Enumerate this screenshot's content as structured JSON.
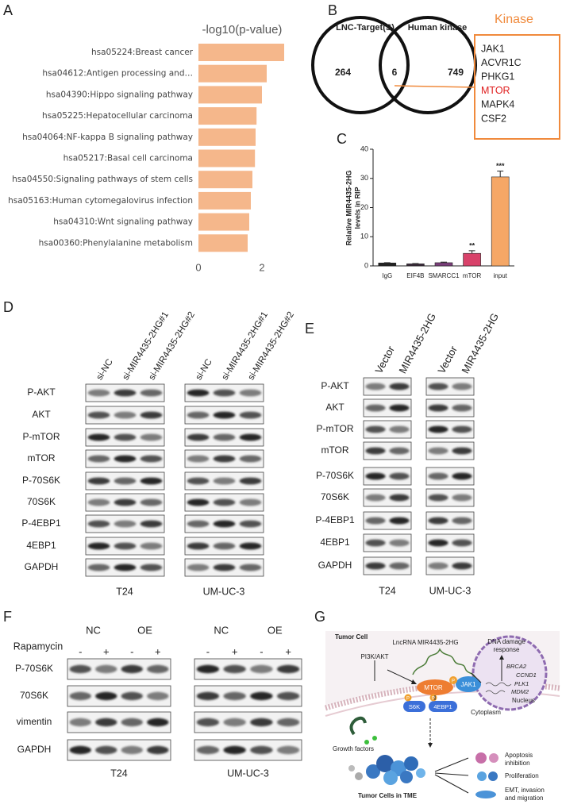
{
  "panel_labels": [
    "A",
    "B",
    "C",
    "D",
    "E",
    "F",
    "G"
  ],
  "chart_data": [
    {
      "type": "bar",
      "orientation": "horizontal",
      "title": "-log10(p-value)",
      "categories": [
        "hsa05224:Breast cancer",
        "hsa04612:Antigen processing and…",
        "hsa04390:Hippo signaling pathway",
        "hsa05225:Hepatocellular carcinoma",
        "hsa04064:NF-kappa B signaling pathway",
        "hsa05217:Basal cell carcinoma",
        "hsa04550:Signaling pathways of stem cells",
        "hsa05163:Human cytomegalovirus infection",
        "hsa04310:Wnt signaling pathway",
        "hsa00360:Phenylalanine metabolism"
      ],
      "values": [
        2.7,
        2.15,
        2.0,
        1.83,
        1.8,
        1.78,
        1.7,
        1.65,
        1.6,
        1.55
      ],
      "color": "#f5b78b",
      "xlim": [
        0,
        2.8
      ],
      "xticks": [
        0,
        2
      ]
    },
    {
      "type": "bar",
      "ylabel": [
        "Relative MIR4435-2HG",
        "levels in RIP"
      ],
      "categories": [
        "IgG",
        "EIF4B",
        "SMARCC1",
        "mTOR",
        "input"
      ],
      "values": [
        1.0,
        0.7,
        1.1,
        4.3,
        30.5
      ],
      "errors": [
        0.1,
        0.1,
        0.2,
        0.9,
        2.0
      ],
      "colors": [
        "#222222",
        "#3a2a3a",
        "#7a3e7a",
        "#d8426a",
        "#f5a766"
      ],
      "ylim": [
        0,
        40
      ],
      "yticks": [
        0,
        10,
        20,
        30,
        40
      ],
      "annotations": [
        {
          "text": "**",
          "index": 3
        },
        {
          "text": "***",
          "index": 4
        }
      ]
    }
  ],
  "venn": {
    "sets": [
      "LNC-Target(S)",
      "Human kinase"
    ],
    "left": 264,
    "both": 6,
    "right": 749
  },
  "kinase_box": {
    "title": "Kinase",
    "items": [
      {
        "text": "JAK1",
        "color": "#222222"
      },
      {
        "text": "ACVR1C",
        "color": "#222222"
      },
      {
        "text": "PHKG1",
        "color": "#222222"
      },
      {
        "text": "MTOR",
        "color": "#e02020"
      },
      {
        "text": "MAPK4",
        "color": "#222222"
      },
      {
        "text": "CSF2",
        "color": "#222222"
      }
    ]
  },
  "blot_D": {
    "columns": [
      "si-NC",
      "si-MIR4435-2HG#1",
      "si-MIR4435-2HG#2"
    ],
    "rows": [
      "P-AKT",
      "AKT",
      "P-mTOR",
      "mTOR",
      "P-70S6K",
      "70S6K",
      "P-4EBP1",
      "4EBP1",
      "GAPDH"
    ],
    "cell_lines": [
      "T24",
      "UM-UC-3"
    ]
  },
  "blot_E": {
    "columns": [
      "Vector",
      "MIR4435-2HG"
    ],
    "rows": [
      "P-AKT",
      "AKT",
      "P-mTOR",
      "mTOR",
      "P-70S6K",
      "70S6K",
      "P-4EBP1",
      "4EBP1",
      "GAPDH"
    ],
    "cell_lines": [
      "T24",
      "UM-UC-3"
    ]
  },
  "blot_F": {
    "groups": [
      "NC",
      "OE"
    ],
    "treatment": "Rapamycin",
    "signs": [
      "-",
      "+",
      "-",
      "+"
    ],
    "rows": [
      "P-70S6K",
      "70S6K",
      "vimentin",
      "GAPDH"
    ],
    "cell_lines": [
      "T24",
      "UM-UC-3"
    ]
  },
  "diagram_G": {
    "tumor_cell": "Tumor Cell",
    "lncrna": "LncRNA MIR4435-2HG",
    "dna_damage": [
      "DNA damage",
      "response"
    ],
    "genes": [
      "BRCA2",
      "CCND1",
      "PLK1",
      "MDM2"
    ],
    "nucleus": "Nucleus",
    "pathway": "PI3K/AKT",
    "mtor": "MTOR",
    "jak1": "JAK1",
    "phospho": "P",
    "s6k": "S6K",
    "eb": "4EBP1",
    "cytoplasm": "Cytoplasm",
    "growth": "Growth factors",
    "tme": "Tumor Cells in TME",
    "outcomes": [
      [
        "Apoptosis",
        "inhibition"
      ],
      [
        "Proliferation"
      ],
      [
        "EMT, invasion",
        "and migration"
      ]
    ]
  }
}
